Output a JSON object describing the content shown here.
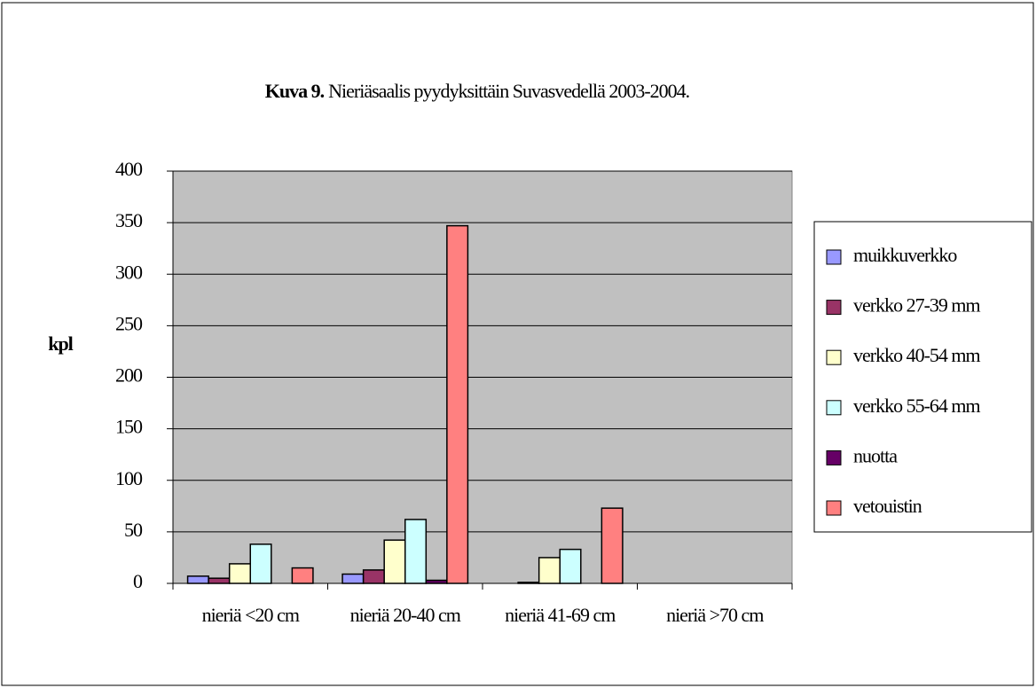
{
  "chart_data": {
    "type": "bar",
    "title_label": "Kuva 9.",
    "title": "Nieriäsaalis pyydyksittäin Suvasvedellä  2003-2004.",
    "y_label": "kpl",
    "categories": [
      "nieriä <20 cm",
      "nieriä 20-40 cm",
      "nieriä 41-69 cm",
      "nieriä >70 cm"
    ],
    "series": [
      {
        "name": "muikkuverkko",
        "color": "#9999ff",
        "values": [
          7,
          9,
          0,
          0
        ]
      },
      {
        "name": "verkko 27-39 mm",
        "color": "#993366",
        "values": [
          5,
          13,
          1,
          0
        ]
      },
      {
        "name": "verkko 40-54 mm",
        "color": "#ffffcc",
        "values": [
          19,
          42,
          25,
          0
        ]
      },
      {
        "name": "verkko 55-64 mm",
        "color": "#ccffff",
        "values": [
          38,
          62,
          33,
          0
        ]
      },
      {
        "name": "nuotta",
        "color": "#660066",
        "values": [
          0,
          3,
          0,
          0
        ]
      },
      {
        "name": "vetouistin",
        "color": "#ff8080",
        "values": [
          15,
          347,
          73,
          0
        ]
      }
    ],
    "ylim": [
      0,
      400
    ],
    "yticks": [
      0,
      50,
      100,
      150,
      200,
      250,
      300,
      350,
      400
    ],
    "grid": true,
    "legend": "right",
    "plot_background": "#c0c0c0"
  }
}
